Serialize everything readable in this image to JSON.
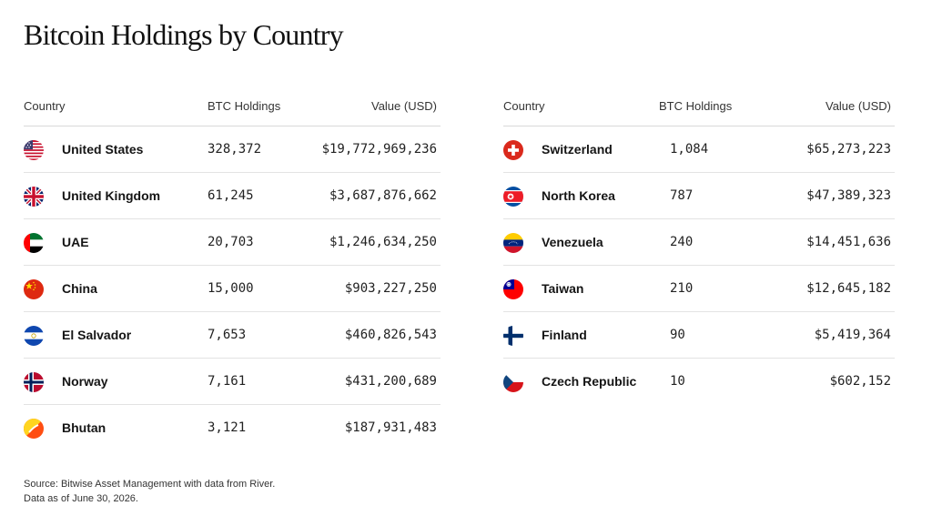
{
  "title": "Bitcoin Holdings by Country",
  "columns": {
    "country": "Country",
    "holdings": "BTC Holdings",
    "value": "Value (USD)"
  },
  "left": [
    {
      "country": "United States",
      "holdings": "328,372",
      "value": "$19,772,969,236",
      "flag": "us-flag-icon"
    },
    {
      "country": "United Kingdom",
      "holdings": "61,245",
      "value": "$3,687,876,662",
      "flag": "uk-flag-icon"
    },
    {
      "country": "UAE",
      "holdings": "20,703",
      "value": "$1,246,634,250",
      "flag": "uae-flag-icon"
    },
    {
      "country": "China",
      "holdings": "15,000",
      "value": "$903,227,250",
      "flag": "china-flag-icon"
    },
    {
      "country": "El Salvador",
      "holdings": "7,653",
      "value": "$460,826,543",
      "flag": "el-salvador-flag-icon"
    },
    {
      "country": "Norway",
      "holdings": "7,161",
      "value": "$431,200,689",
      "flag": "norway-flag-icon"
    },
    {
      "country": "Bhutan",
      "holdings": "3,121",
      "value": "$187,931,483",
      "flag": "bhutan-flag-icon"
    }
  ],
  "right": [
    {
      "country": "Switzerland",
      "holdings": "1,084",
      "value": "$65,273,223",
      "flag": "switzerland-flag-icon"
    },
    {
      "country": "North Korea",
      "holdings": "787",
      "value": "$47,389,323",
      "flag": "north-korea-flag-icon"
    },
    {
      "country": "Venezuela",
      "holdings": "240",
      "value": "$14,451,636",
      "flag": "venezuela-flag-icon"
    },
    {
      "country": "Taiwan",
      "holdings": "210",
      "value": "$12,645,182",
      "flag": "taiwan-flag-icon"
    },
    {
      "country": "Finland",
      "holdings": "90",
      "value": "$5,419,364",
      "flag": "finland-flag-icon"
    },
    {
      "country": "Czech Republic",
      "holdings": "10",
      "value": "$602,152",
      "flag": "czech-flag-icon"
    }
  ],
  "footer": {
    "source": "Source: Bitwise Asset Management with data from River.",
    "date": "Data as of June 30, 2026."
  },
  "colors": {
    "text": "#151515",
    "rule": "#e3e3e3"
  }
}
